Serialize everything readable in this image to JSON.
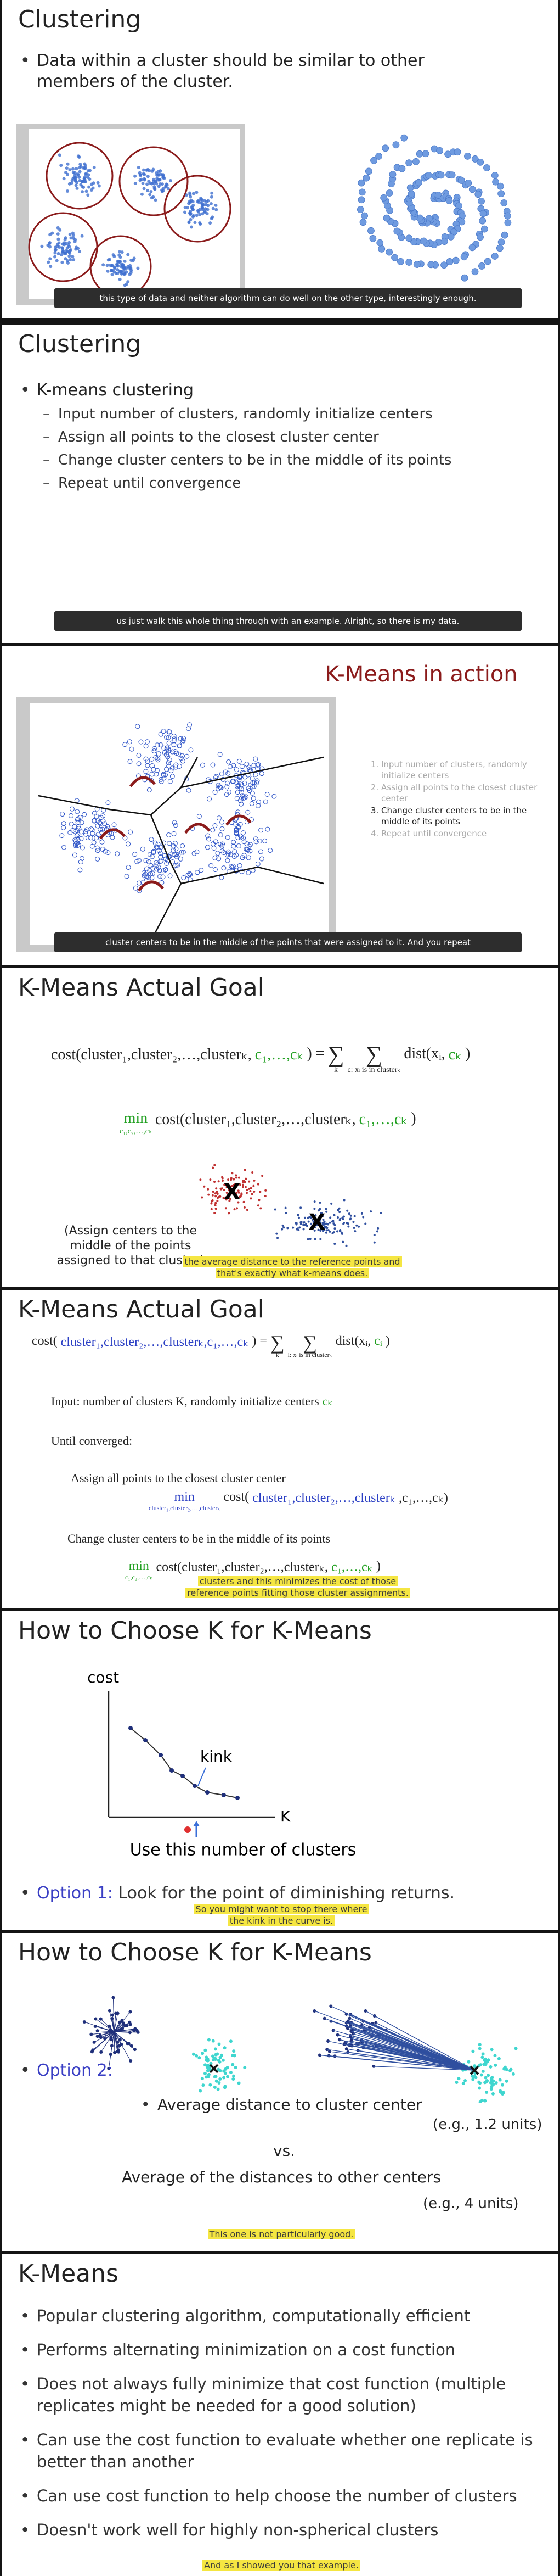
{
  "slides": [
    {
      "title": "Clustering",
      "bullets": [
        "Data within a cluster should be similar to other members of the cluster."
      ],
      "caption": "this type of data and neither algorithm can do well on the other type, interestingly enough."
    },
    {
      "title": "Clustering",
      "bullets": [
        "K-means clustering"
      ],
      "sub_bullets": [
        "Input number of clusters, randomly initialize centers",
        "Assign all points to the closest cluster center",
        "Change cluster centers to be in the middle of its points",
        "Repeat until convergence"
      ],
      "caption": "us just walk this whole thing through with an example. Alright, so there is my data."
    },
    {
      "title": "K-Means in action",
      "steps": [
        "Input number of clusters, randomly initialize centers",
        "Assign all points to the closest cluster center",
        "Change cluster centers to be in the middle of its points",
        "Repeat until convergence"
      ],
      "caption": "cluster centers to be in the middle of the points that were assigned to it. And you repeat"
    },
    {
      "title": "K-Means Actual Goal",
      "formula": [
        {
          "text": "cost(cluster₁,cluster₂,…,clusterₖ,"
        },
        {
          "text": "c₁,…,cₖ",
          "color": "#22a022"
        },
        {
          "text": ") ="
        },
        {
          "text": "∑",
          "under": "k"
        },
        {
          "text": "∑",
          "under": "c: xᵢ is in clusterₖ"
        },
        {
          "text": "dist(xᵢ,"
        },
        {
          "text": "cₖ",
          "color": "#22a022"
        },
        {
          "text": ")"
        }
      ],
      "min_formula": [
        {
          "text": "min",
          "under": "c₁,c₂,…,cₖ",
          "color": "#22a022"
        },
        {
          "text": "cost(cluster₁,cluster₂,…,clusterₖ,"
        },
        {
          "text": "c₁,…,cₖ",
          "color": "#22a022"
        },
        {
          "text": ")"
        }
      ],
      "center_marker": "X",
      "note": "(Assign centers to the middle of the points assigned to that cluster)",
      "caption": "the average distance to the reference points and that's exactly what k-means does."
    },
    {
      "title": "K-Means Actual Goal",
      "formula": [
        {
          "text": "cost("
        },
        {
          "text": "cluster₁,cluster₂,…,clusterₖ,c₁,…,cₖ",
          "color": "#2b3fc4"
        },
        {
          "text": ") ="
        },
        {
          "text": "∑",
          "under": "k"
        },
        {
          "text": "∑",
          "under": "i: xᵢ is in clusterₖ"
        },
        {
          "text": "dist(xᵢ,"
        },
        {
          "text": "cᵢ",
          "color": "#22a022"
        },
        {
          "text": ")"
        }
      ],
      "input": [
        {
          "text": "Input: number of clusters K, randomly initialize centers"
        },
        {
          "text": "cₖ",
          "color": "#22a022"
        }
      ],
      "loop": "Until converged:",
      "assign": "Assign all points to the closest cluster center",
      "assign_formula": [
        {
          "text": "min",
          "under": "cluster₁,cluster₂,…,clusterₖ",
          "color": "#2b3fc4"
        },
        {
          "text": "cost("
        },
        {
          "text": "cluster₁,cluster₂,…,clusterₖ",
          "color": "#2b3fc4"
        },
        {
          "text": ",c₁,…,cₖ)"
        }
      ],
      "update": "Change cluster centers to be in the middle of its points",
      "update_formula": [
        {
          "text": "min",
          "under": "c₁,c₂,…,cₖ",
          "color": "#22a022"
        },
        {
          "text": "cost(cluster₁,cluster₂,…,clusterₖ,"
        },
        {
          "text": "c₁,…,cₖ",
          "color": "#22a022"
        },
        {
          "text": ")"
        }
      ],
      "caption": "clusters and this minimizes the cost of those reference points fitting those cluster assignments."
    },
    {
      "title": "How to Choose K for K-Means",
      "y_label": "cost",
      "x_label": "K",
      "annotation": "kink",
      "pointer": "Use this number of clusters",
      "option_label": "Option 1:",
      "option_text": "Look for the point of diminishing returns.",
      "caption": "So you might want to stop there where the kink in the curve is."
    },
    {
      "title": "How to Choose K for K-Means",
      "option_label": "Option 2:",
      "within": "Average distance to cluster center",
      "within_example": "(e.g., 1.2 units)",
      "vs": "vs.",
      "between": "Average of the distances to other centers",
      "between_example": "(e.g., 4 units)",
      "caption": "This one is not particularly good."
    },
    {
      "title": "K-Means",
      "bullets": [
        "Popular clustering algorithm, computationally efficient",
        "Performs alternating minimization on a cost function",
        "Does not always fully minimize that cost function (multiple replicates might be needed for a good solution)",
        "Can use the cost function to evaluate whether one replicate is better than another",
        "Can use cost function to help choose the number of clusters",
        "Doesn't work well for highly non-spherical clusters"
      ],
      "caption": "And as I showed you that example."
    }
  ]
}
